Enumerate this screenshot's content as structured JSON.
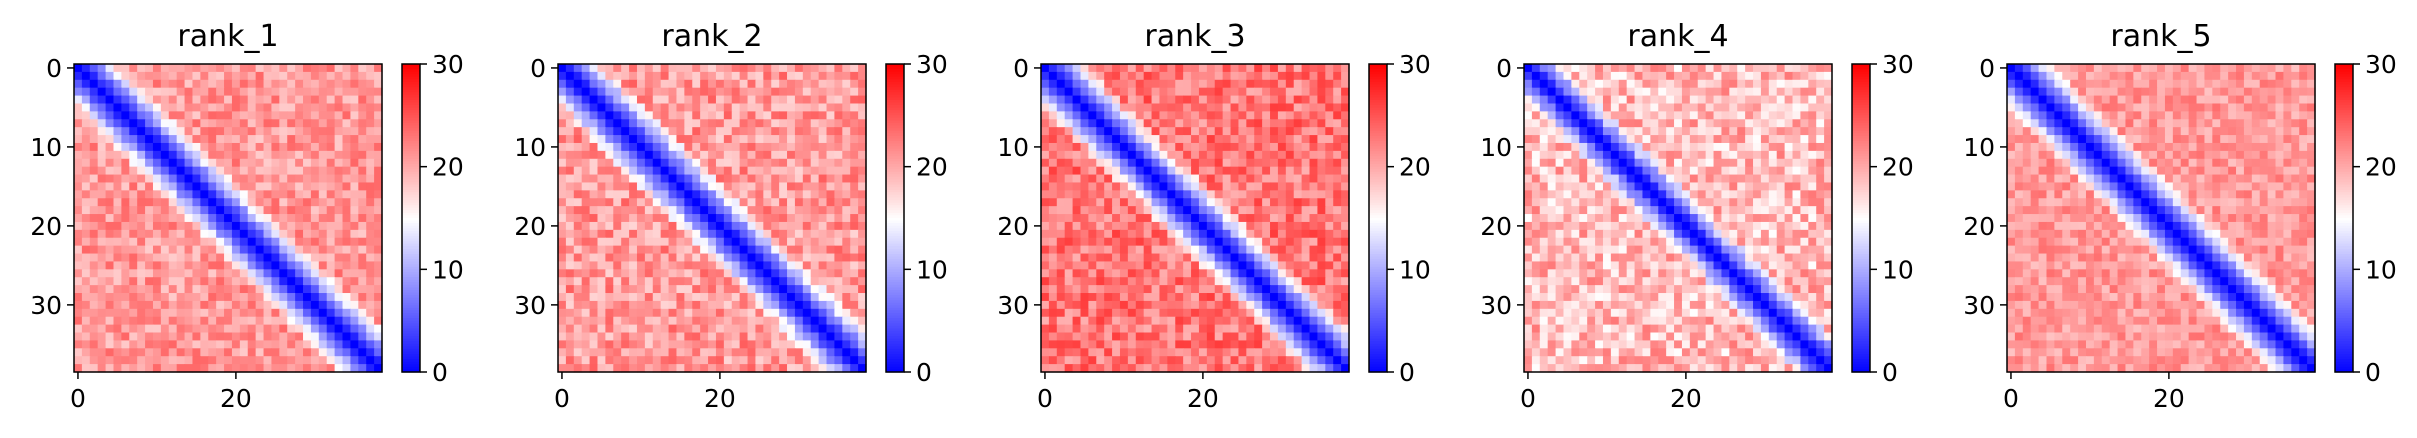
{
  "chart_data": [
    {
      "type": "heatmap",
      "title": "rank_1",
      "n": 39,
      "colorbar": {
        "min": 0,
        "max": 30,
        "ticks": [
          0,
          10,
          20,
          30
        ],
        "colormap": "bwr"
      },
      "x_ticks": [
        0,
        20
      ],
      "y_ticks": [
        0,
        10,
        20,
        30
      ],
      "description_values": {
        "diagonal": 0,
        "band_width": 6,
        "off_diagonal_mean": 21,
        "texture_seed": 11,
        "texture_amp": 3.0
      }
    },
    {
      "type": "heatmap",
      "title": "rank_2",
      "n": 39,
      "colorbar": {
        "min": 0,
        "max": 30,
        "ticks": [
          0,
          10,
          20,
          30
        ],
        "colormap": "bwr"
      },
      "x_ticks": [
        0,
        20
      ],
      "y_ticks": [
        0,
        10,
        20,
        30
      ],
      "description_values": {
        "diagonal": 0,
        "band_width": 6,
        "off_diagonal_mean": 21,
        "texture_seed": 23,
        "texture_amp": 3.5
      }
    },
    {
      "type": "heatmap",
      "title": "rank_3",
      "n": 39,
      "colorbar": {
        "min": 0,
        "max": 30,
        "ticks": [
          0,
          10,
          20,
          30
        ],
        "colormap": "bwr"
      },
      "x_ticks": [
        0,
        20
      ],
      "y_ticks": [
        0,
        10,
        20,
        30
      ],
      "description_values": {
        "diagonal": 0,
        "band_width": 6,
        "off_diagonal_mean": 23,
        "texture_seed": 37,
        "texture_amp": 3.5
      }
    },
    {
      "type": "heatmap",
      "title": "rank_4",
      "n": 39,
      "colorbar": {
        "min": 0,
        "max": 30,
        "ticks": [
          0,
          10,
          20,
          30
        ],
        "colormap": "bwr"
      },
      "x_ticks": [
        0,
        20
      ],
      "y_ticks": [
        0,
        10,
        20,
        30
      ],
      "description_values": {
        "diagonal": 0,
        "band_width": 5,
        "off_diagonal_mean": 19,
        "texture_seed": 41,
        "texture_amp": 4.0
      }
    },
    {
      "type": "heatmap",
      "title": "rank_5",
      "n": 39,
      "colorbar": {
        "min": 0,
        "max": 30,
        "ticks": [
          0,
          10,
          20,
          30
        ],
        "colormap": "bwr"
      },
      "x_ticks": [
        0,
        20
      ],
      "y_ticks": [
        0,
        10,
        20,
        30
      ],
      "description_values": {
        "diagonal": 0,
        "band_width": 6,
        "off_diagonal_mean": 21,
        "texture_seed": 53,
        "texture_amp": 2.5
      }
    }
  ]
}
